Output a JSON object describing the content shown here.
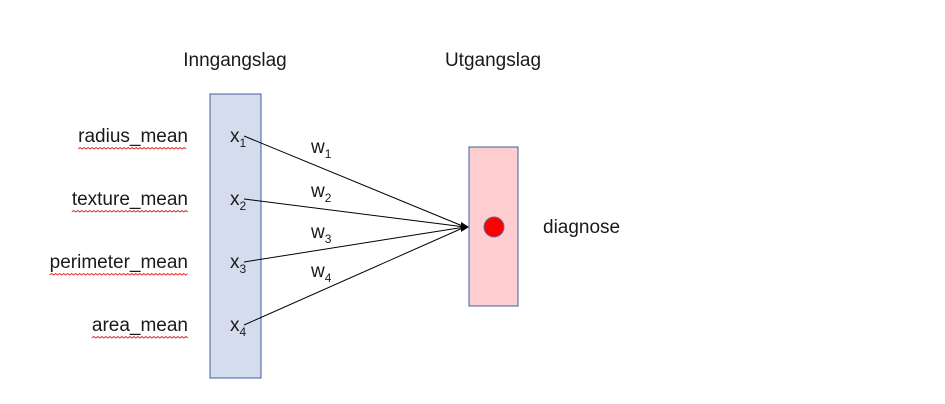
{
  "layers": {
    "input_title": "Inngangslag",
    "output_title": "Utgangslag"
  },
  "features": [
    {
      "label": "radius_mean",
      "var": "x",
      "sub": "1"
    },
    {
      "label": "texture_mean",
      "var": "x",
      "sub": "2"
    },
    {
      "label": "perimeter_mean",
      "var": "x",
      "sub": "3"
    },
    {
      "label": "area_mean",
      "var": "x",
      "sub": "4"
    }
  ],
  "weights": [
    {
      "var": "w",
      "sub": "1"
    },
    {
      "var": "w",
      "sub": "2"
    },
    {
      "var": "w",
      "sub": "3"
    },
    {
      "var": "w",
      "sub": "4"
    }
  ],
  "output": {
    "label": "diagnose"
  },
  "colors": {
    "input_fill": "#d5dcee",
    "input_stroke": "#3f5e9c",
    "output_fill": "#fdcdd0",
    "output_stroke": "#3f5e9c",
    "node_fill": "#ff0000",
    "node_stroke": "#5b6fa0",
    "spellcheck_underline": "#e03030"
  }
}
